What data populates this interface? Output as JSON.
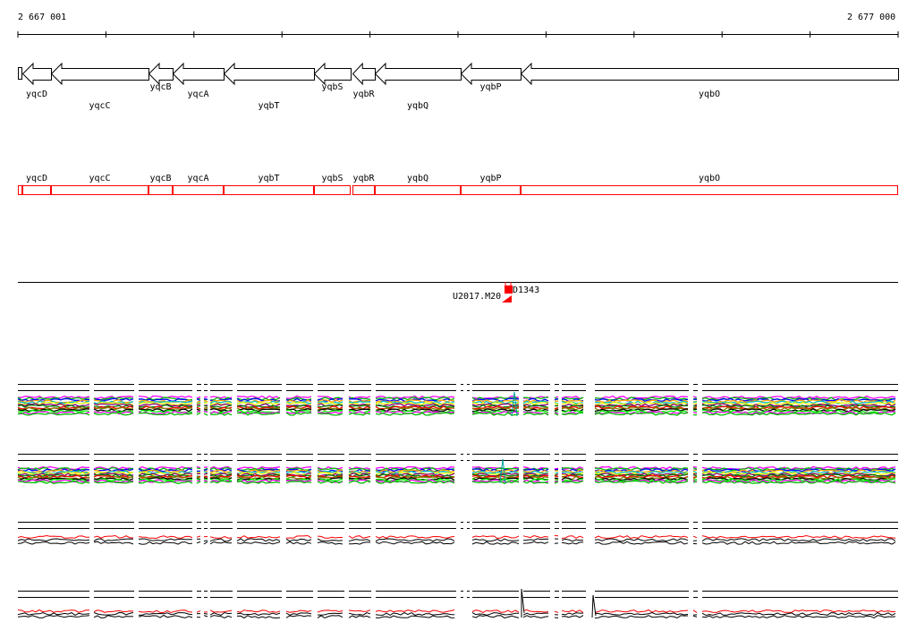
{
  "ruler": {
    "start_label": "2 667 001",
    "end_label": "2 677 000"
  },
  "genes": [
    {
      "name": "yqcD",
      "start": 25,
      "end": 57,
      "row": 1
    },
    {
      "name": "yqcC",
      "start": 57,
      "end": 166,
      "row": 2
    },
    {
      "name": "yqcB",
      "start": 166,
      "end": 193,
      "row": 0
    },
    {
      "name": "yqcA",
      "start": 193,
      "end": 250,
      "row": 1
    },
    {
      "name": "yqbT",
      "start": 250,
      "end": 351,
      "row": 2
    },
    {
      "name": "yqbS",
      "start": 351,
      "end": 392,
      "row": 0
    },
    {
      "name": "yqbR",
      "start": 394,
      "end": 419,
      "row": 1
    },
    {
      "name": "yqbQ",
      "start": 419,
      "end": 515,
      "row": 2
    },
    {
      "name": "yqbP",
      "start": 515,
      "end": 582,
      "row": 0
    },
    {
      "name": "yqbO",
      "start": 582,
      "end": 1004,
      "row": 1
    }
  ],
  "markers": {
    "left": "U2017.M20",
    "right": "D1343"
  },
  "colors": {
    "gene_outline": "#000000",
    "transcript_outline": "#ff0000",
    "marker": "#ff0000"
  }
}
